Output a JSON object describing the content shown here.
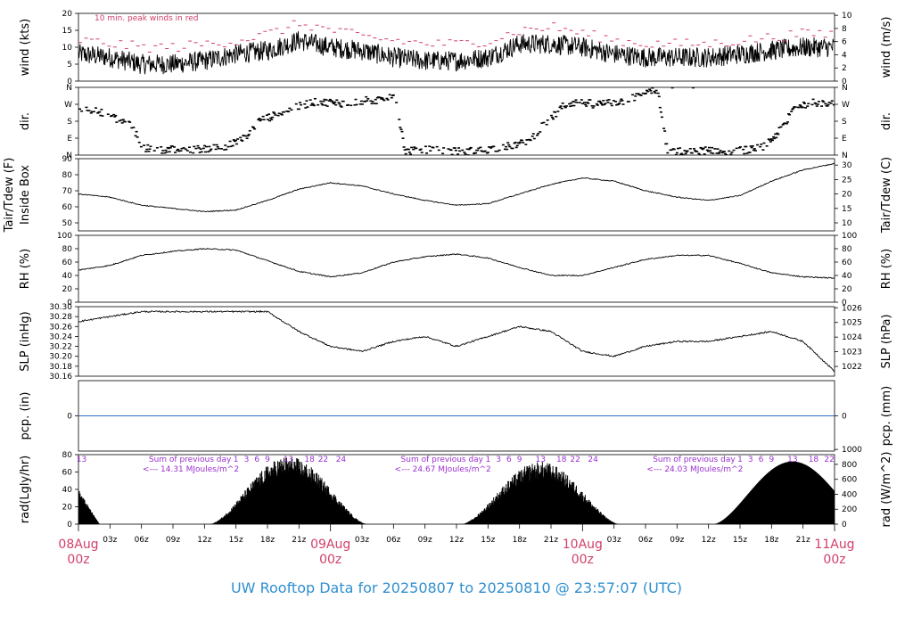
{
  "footer": {
    "title": "UW Rooftop Data for 20250807  to  20250810 @ 23:57:07  (UTC)"
  },
  "colors": {
    "peak_wind": "#d0406a",
    "date_label": "#d0406a",
    "radiation_note": "#9b30d0",
    "precip_line": "#3070c0",
    "footer": "#2f8fd0"
  },
  "x_axis": {
    "range_hours": [
      0,
      72
    ],
    "hour_ticks": [
      {
        "h": 3,
        "label": "03z"
      },
      {
        "h": 6,
        "label": "06z"
      },
      {
        "h": 9,
        "label": "09z"
      },
      {
        "h": 12,
        "label": "12z"
      },
      {
        "h": 15,
        "label": "15z"
      },
      {
        "h": 18,
        "label": "18z"
      },
      {
        "h": 21,
        "label": "21z"
      },
      {
        "h": 27,
        "label": "03z"
      },
      {
        "h": 30,
        "label": "06z"
      },
      {
        "h": 33,
        "label": "09z"
      },
      {
        "h": 36,
        "label": "12z"
      },
      {
        "h": 39,
        "label": "15z"
      },
      {
        "h": 42,
        "label": "18z"
      },
      {
        "h": 45,
        "label": "21z"
      },
      {
        "h": 51,
        "label": "03z"
      },
      {
        "h": 54,
        "label": "06z"
      },
      {
        "h": 57,
        "label": "09z"
      },
      {
        "h": 60,
        "label": "12z"
      },
      {
        "h": 63,
        "label": "15z"
      },
      {
        "h": 66,
        "label": "18z"
      },
      {
        "h": 69,
        "label": "21z"
      }
    ],
    "date_ticks": [
      {
        "h": 0,
        "date": "08Aug",
        "hour": "00z"
      },
      {
        "h": 24,
        "date": "09Aug",
        "hour": "00z"
      },
      {
        "h": 48,
        "date": "10Aug",
        "hour": "00z"
      },
      {
        "h": 72,
        "date": "11Aug",
        "hour": "00z"
      }
    ]
  },
  "chart_data": [
    {
      "id": "wind",
      "type": "line",
      "ylabel_left": "wind (kts)",
      "ylabel_right": "wind (m/s)",
      "annotation": "10 min. peak winds in red",
      "ylim": [
        0,
        20
      ],
      "left_ticks": [
        0,
        5,
        10,
        15,
        20
      ],
      "right_ticks": [
        0,
        2,
        4,
        6,
        8,
        10
      ],
      "right_scale": 0.5144,
      "x_hours": [
        0,
        3,
        6,
        9,
        12,
        15,
        18,
        21,
        24,
        27,
        30,
        33,
        36,
        39,
        42,
        45,
        48,
        51,
        54,
        57,
        60,
        63,
        66,
        69,
        72
      ],
      "series": [
        {
          "values": [
            8,
            7,
            5,
            5,
            6,
            8,
            9,
            12,
            10,
            9,
            7,
            6,
            6,
            7,
            11,
            11,
            10,
            8,
            7,
            7,
            7,
            8,
            9,
            10,
            10
          ]
        },
        {
          "values": [
            12,
            11,
            10,
            10,
            11,
            12,
            14,
            17,
            15,
            13,
            12,
            11,
            11,
            12,
            15,
            16,
            14,
            12,
            11,
            11,
            11,
            12,
            13,
            14,
            14
          ]
        }
      ]
    },
    {
      "id": "dir",
      "type": "scatter",
      "ylabel_left": "dir.",
      "ylabel_right": "dir.",
      "ylim": [
        0,
        360
      ],
      "tick_labels": [
        "N",
        "E",
        "S",
        "W",
        "N"
      ],
      "x_hours": [
        0,
        1,
        2,
        3,
        4,
        5,
        6,
        7,
        8,
        9,
        10,
        11,
        12,
        13,
        14,
        15,
        16,
        17,
        18,
        19,
        20,
        21,
        22,
        23,
        24,
        25,
        26,
        27,
        28,
        29,
        30,
        31,
        32,
        33,
        34,
        35,
        36,
        37,
        38,
        39,
        40,
        41,
        42,
        43,
        44,
        45,
        46,
        47,
        48,
        49,
        50,
        51,
        52,
        53,
        54,
        55,
        56,
        57,
        58,
        59,
        60,
        61,
        62,
        63,
        64,
        65,
        66,
        67,
        68,
        69,
        70,
        71,
        72
      ],
      "values": [
        250,
        240,
        230,
        200,
        180,
        150,
        40,
        30,
        30,
        30,
        30,
        30,
        35,
        40,
        50,
        70,
        100,
        180,
        200,
        220,
        240,
        260,
        280,
        280,
        280,
        275,
        280,
        290,
        290,
        300,
        320,
        20,
        25,
        30,
        25,
        20,
        20,
        20,
        25,
        30,
        40,
        50,
        60,
        90,
        150,
        200,
        260,
        280,
        280,
        270,
        275,
        280,
        290,
        310,
        330,
        350,
        10,
        20,
        15,
        20,
        30,
        20,
        20,
        25,
        30,
        40,
        90,
        150,
        250,
        270,
        280,
        280,
        270
      ]
    },
    {
      "id": "temp",
      "type": "line",
      "ylabel_left": "Tair/Tdew (F)\nInside Box",
      "ylabel_right": "Tair/Tdew (C)",
      "ylim": [
        45,
        90
      ],
      "left_ticks": [
        50,
        60,
        70,
        80,
        90
      ],
      "right_ticks": [
        10,
        15,
        20,
        25,
        30
      ],
      "x_hours": [
        0,
        3,
        6,
        9,
        12,
        15,
        18,
        21,
        24,
        27,
        30,
        33,
        36,
        39,
        42,
        45,
        48,
        51,
        54,
        57,
        60,
        63,
        66,
        69,
        72
      ],
      "values": [
        68,
        66,
        61,
        59,
        57,
        58,
        64,
        71,
        75,
        73,
        68,
        64,
        61,
        62,
        68,
        74,
        78,
        76,
        70,
        66,
        64,
        67,
        76,
        83,
        87
      ]
    },
    {
      "id": "rh",
      "type": "line",
      "ylabel_left": "RH (%)",
      "ylabel_right": "RH (%)",
      "ylim": [
        0,
        100
      ],
      "left_ticks": [
        0,
        20,
        40,
        60,
        80,
        100
      ],
      "right_ticks": [
        0,
        20,
        40,
        60,
        80,
        100
      ],
      "x_hours": [
        0,
        3,
        6,
        9,
        12,
        15,
        18,
        21,
        24,
        27,
        30,
        33,
        36,
        39,
        42,
        45,
        48,
        51,
        54,
        57,
        60,
        63,
        66,
        69,
        72
      ],
      "values": [
        48,
        55,
        70,
        76,
        80,
        78,
        62,
        46,
        38,
        44,
        60,
        68,
        72,
        66,
        52,
        40,
        40,
        52,
        64,
        70,
        70,
        58,
        44,
        38,
        36
      ]
    },
    {
      "id": "slp",
      "type": "line",
      "ylabel_left": "SLP (inHg)",
      "ylabel_right": "SLP (hPa)",
      "ylim": [
        30.16,
        30.3
      ],
      "left_ticks": [
        30.16,
        30.18,
        30.2,
        30.22,
        30.24,
        30.26,
        30.28,
        30.3
      ],
      "right_ticks": [
        1022,
        1023,
        1024,
        1025,
        1026
      ],
      "x_hours": [
        0,
        3,
        6,
        9,
        12,
        15,
        18,
        21,
        24,
        27,
        30,
        33,
        36,
        39,
        42,
        45,
        48,
        51,
        54,
        57,
        60,
        63,
        66,
        69,
        72
      ],
      "values": [
        30.27,
        30.28,
        30.29,
        30.29,
        30.29,
        30.29,
        30.29,
        30.25,
        30.22,
        30.21,
        30.23,
        30.24,
        30.22,
        30.24,
        30.26,
        30.25,
        30.21,
        30.2,
        30.22,
        30.23,
        30.23,
        30.24,
        30.25,
        30.23,
        30.17
      ]
    },
    {
      "id": "pcp",
      "type": "line",
      "ylabel_left": "pcp. (in)",
      "ylabel_right": "pcp. (mm)",
      "ylim": [
        -1,
        1
      ],
      "left_ticks": [
        0
      ],
      "right_ticks": [
        0
      ],
      "x_hours": [
        0,
        72
      ],
      "values": [
        0,
        0
      ]
    },
    {
      "id": "rad",
      "type": "area",
      "ylabel_left": "rad(Lgly/hr)",
      "ylabel_right": "rad (W/m^2)",
      "ylim": [
        0,
        80
      ],
      "left_ticks": [
        0,
        20,
        40,
        60,
        80
      ],
      "right_ticks": [
        0,
        200,
        400,
        600,
        800,
        1000
      ],
      "right_scale": 11.63,
      "day_peaks": [
        {
          "rise": 12.5,
          "set": 27.5,
          "peak": 78
        },
        {
          "rise": 36.5,
          "set": 51.5,
          "peak": 72
        },
        {
          "rise": 60.5,
          "set": 75.5,
          "peak": 72
        }
      ],
      "residual_start": {
        "end": 2.0,
        "peak": 40
      },
      "notes": [
        {
          "h": 3.3,
          "line1": "Sum of previous day",
          "line2": "<--- 14.31 MJoules/m^2"
        },
        {
          "h": 27.3,
          "line1": "Sum of previous day",
          "line2": "<--- 24.67 MJoules/m^2"
        },
        {
          "h": 51.3,
          "line1": "Sum of previous day",
          "line2": "<--- 24.03 MJoules/m^2"
        }
      ],
      "hour_marks": [
        {
          "h": 0.3,
          "label": "13"
        },
        {
          "h": 15,
          "label": "1"
        },
        {
          "h": 16,
          "label": "3"
        },
        {
          "h": 17,
          "label": "6"
        },
        {
          "h": 18,
          "label": "9"
        },
        {
          "h": 20,
          "label": "13"
        },
        {
          "h": 22,
          "label": "18"
        },
        {
          "h": 23.3,
          "label": "22"
        },
        {
          "h": 25,
          "label": "24"
        },
        {
          "h": 39,
          "label": "1"
        },
        {
          "h": 40,
          "label": "3"
        },
        {
          "h": 41,
          "label": "6"
        },
        {
          "h": 42,
          "label": "9"
        },
        {
          "h": 44,
          "label": "13"
        },
        {
          "h": 46,
          "label": "18"
        },
        {
          "h": 47.3,
          "label": "22"
        },
        {
          "h": 49,
          "label": "24"
        },
        {
          "h": 63,
          "label": "1"
        },
        {
          "h": 64,
          "label": "3"
        },
        {
          "h": 65,
          "label": "6"
        },
        {
          "h": 66,
          "label": "9"
        },
        {
          "h": 68,
          "label": "13"
        },
        {
          "h": 70,
          "label": "18"
        },
        {
          "h": 71.5,
          "label": "22"
        }
      ]
    }
  ]
}
